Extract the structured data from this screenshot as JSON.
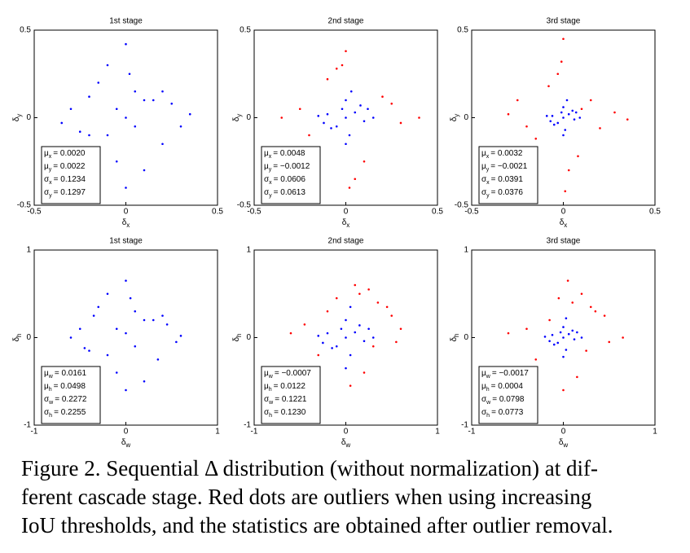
{
  "chart_data": [
    {
      "type": "scatter",
      "title": "1st stage",
      "xlim": [
        -0.5,
        0.5
      ],
      "ylim": [
        -0.5,
        0.5
      ],
      "xticks": [
        -0.5,
        0,
        0.5
      ],
      "yticks": [
        -0.5,
        0,
        0.5
      ],
      "xlabel": {
        "symbol": "δ",
        "sub": "x"
      },
      "ylabel": {
        "symbol": "δ",
        "sub": "y"
      },
      "annotations": [
        {
          "symbol": "μ",
          "sub": "x",
          "text": "= 0.0020"
        },
        {
          "symbol": "μ",
          "sub": "y",
          "text": "= 0.0022"
        },
        {
          "symbol": "σ",
          "sub": "x",
          "text": "= 0.1234"
        },
        {
          "symbol": "σ",
          "sub": "y",
          "text": "= 0.1297"
        }
      ],
      "series": [
        {
          "color": "#0000ff",
          "x": [
            -0.3,
            -0.2,
            -0.15,
            -0.1,
            -0.05,
            0,
            0.05,
            0.1,
            0.15,
            0.2,
            0.3,
            0.35,
            -0.35,
            0,
            0,
            0.1,
            -0.1,
            0.2,
            -0.2,
            0.05,
            -0.05,
            0.25,
            -0.25,
            0.02
          ],
          "y": [
            0.05,
            -0.1,
            0.2,
            0.3,
            -0.25,
            0.42,
            0.15,
            -0.3,
            0.1,
            0.15,
            -0.05,
            0.02,
            -0.03,
            -0.4,
            0,
            0.1,
            -0.1,
            -0.15,
            0.12,
            -0.05,
            0.05,
            0.08,
            -0.08,
            0.25
          ]
        }
      ]
    },
    {
      "type": "scatter",
      "title": "2nd stage",
      "xlim": [
        -0.5,
        0.5
      ],
      "ylim": [
        -0.5,
        0.5
      ],
      "xticks": [
        -0.5,
        0,
        0.5
      ],
      "yticks": [
        -0.5,
        0,
        0.5
      ],
      "xlabel": {
        "symbol": "δ",
        "sub": "x"
      },
      "ylabel": {
        "symbol": "δ",
        "sub": "y"
      },
      "annotations": [
        {
          "symbol": "μ",
          "sub": "x",
          "text": "= 0.0048"
        },
        {
          "symbol": "μ",
          "sub": "y",
          "text": "= −0.0012"
        },
        {
          "symbol": "σ",
          "sub": "x",
          "text": "= 0.0606"
        },
        {
          "symbol": "σ",
          "sub": "y",
          "text": "= 0.0613"
        }
      ],
      "series": [
        {
          "color": "#ff0000",
          "x": [
            -0.35,
            -0.25,
            0.3,
            0.4,
            0,
            0.02,
            -0.02,
            0.2,
            -0.2,
            0.1,
            -0.1,
            0.25,
            0.05,
            -0.05
          ],
          "y": [
            0,
            0.05,
            -0.03,
            0,
            0.38,
            -0.4,
            0.3,
            0.12,
            -0.1,
            -0.25,
            0.22,
            0.08,
            -0.35,
            0.28
          ]
        },
        {
          "color": "#0000ff",
          "x": [
            -0.1,
            -0.05,
            0,
            0.05,
            0.1,
            0.02,
            -0.02,
            0.08,
            -0.08,
            0.15,
            -0.15,
            0,
            0.03,
            -0.12,
            0.12,
            0
          ],
          "y": [
            0.02,
            -0.05,
            0.1,
            0.03,
            -0.02,
            -0.1,
            0.05,
            0.07,
            -0.06,
            0,
            0.01,
            -0.15,
            0.15,
            -0.03,
            0.05,
            0
          ]
        }
      ]
    },
    {
      "type": "scatter",
      "title": "3rd stage",
      "xlim": [
        -0.5,
        0.5
      ],
      "ylim": [
        -0.5,
        0.5
      ],
      "xticks": [
        -0.5,
        0,
        0.5
      ],
      "yticks": [
        -0.5,
        0,
        0.5
      ],
      "xlabel": {
        "symbol": "δ",
        "sub": "x"
      },
      "ylabel": {
        "symbol": "δ",
        "sub": "y"
      },
      "annotations": [
        {
          "symbol": "μ",
          "sub": "x",
          "text": "= 0.0032"
        },
        {
          "symbol": "μ",
          "sub": "y",
          "text": "= −0.0021"
        },
        {
          "symbol": "σ",
          "sub": "x",
          "text": "= 0.0391"
        },
        {
          "symbol": "σ",
          "sub": "y",
          "text": "= 0.0376"
        }
      ],
      "series": [
        {
          "color": "#ff0000",
          "x": [
            -0.3,
            -0.2,
            0.28,
            0.35,
            0,
            0.01,
            -0.01,
            0.15,
            -0.15,
            0.08,
            -0.08,
            0.2,
            0.03,
            -0.03,
            0.1,
            -0.25
          ],
          "y": [
            0.02,
            -0.05,
            0.03,
            -0.01,
            0.45,
            -0.42,
            0.32,
            0.1,
            -0.12,
            -0.22,
            0.18,
            -0.06,
            -0.3,
            0.25,
            0.05,
            0.1
          ]
        },
        {
          "color": "#0000ff",
          "x": [
            -0.06,
            -0.03,
            0,
            0.03,
            0.06,
            0.01,
            -0.01,
            0.05,
            -0.05,
            0.09,
            -0.09,
            0,
            0.02,
            -0.07,
            0.07,
            0
          ],
          "y": [
            0.01,
            -0.03,
            0.06,
            0.02,
            -0.01,
            -0.07,
            0.03,
            0.04,
            -0.04,
            0,
            0.01,
            -0.1,
            0.1,
            -0.02,
            0.03,
            0
          ]
        }
      ]
    },
    {
      "type": "scatter",
      "title": "1st stage",
      "xlim": [
        -1,
        1
      ],
      "ylim": [
        -1,
        1
      ],
      "xticks": [
        -1,
        0,
        1
      ],
      "yticks": [
        -1,
        0,
        1
      ],
      "xlabel": {
        "symbol": "δ",
        "sub": "w"
      },
      "ylabel": {
        "symbol": "δ",
        "sub": "h"
      },
      "annotations": [
        {
          "symbol": "μ",
          "sub": "w",
          "text": "= 0.0161"
        },
        {
          "symbol": "μ",
          "sub": "h",
          "text": "= 0.0498"
        },
        {
          "symbol": "σ",
          "sub": "w",
          "text": "= 0.2272"
        },
        {
          "symbol": "σ",
          "sub": "h",
          "text": "= 0.2255"
        }
      ],
      "series": [
        {
          "color": "#0000ff",
          "x": [
            -0.5,
            -0.4,
            -0.3,
            -0.2,
            -0.1,
            0,
            0.1,
            0.2,
            0.3,
            0.4,
            0.55,
            0.6,
            -0.6,
            0,
            0,
            0.2,
            -0.2,
            0.35,
            -0.35,
            0.1,
            -0.1,
            0.45,
            -0.45,
            0.05
          ],
          "y": [
            0.1,
            -0.15,
            0.35,
            0.5,
            -0.4,
            0.65,
            0.3,
            -0.5,
            0.2,
            0.25,
            -0.05,
            0.02,
            0,
            -0.6,
            0.05,
            0.2,
            -0.2,
            -0.25,
            0.25,
            -0.1,
            0.1,
            0.15,
            -0.12,
            0.45
          ]
        }
      ]
    },
    {
      "type": "scatter",
      "title": "2nd stage",
      "xlim": [
        -1,
        1
      ],
      "ylim": [
        -1,
        1
      ],
      "xticks": [
        -1,
        0,
        1
      ],
      "yticks": [
        -1,
        0,
        1
      ],
      "xlabel": {
        "symbol": "δ",
        "sub": "w"
      },
      "ylabel": {
        "symbol": "δ",
        "sub": "h"
      },
      "annotations": [
        {
          "symbol": "μ",
          "sub": "w",
          "text": "= −0.0007"
        },
        {
          "symbol": "μ",
          "sub": "h",
          "text": "= 0.0122"
        },
        {
          "symbol": "σ",
          "sub": "w",
          "text": "= 0.1221"
        },
        {
          "symbol": "σ",
          "sub": "h",
          "text": "= 0.1230"
        }
      ],
      "series": [
        {
          "color": "#ff0000",
          "x": [
            -0.6,
            -0.45,
            0.5,
            0.6,
            0.1,
            0.05,
            -0.1,
            0.35,
            -0.3,
            0.2,
            0.45,
            0.25,
            0.3,
            -0.2,
            0.15,
            0.55
          ],
          "y": [
            0.05,
            0.15,
            0.25,
            0.1,
            0.6,
            -0.55,
            0.45,
            0.4,
            -0.2,
            -0.4,
            0.35,
            0.55,
            -0.1,
            0.3,
            0.5,
            -0.05
          ]
        },
        {
          "color": "#0000ff",
          "x": [
            -0.2,
            -0.1,
            0,
            0.1,
            0.2,
            0.05,
            -0.05,
            0.15,
            -0.15,
            0.3,
            -0.3,
            0,
            0.05,
            -0.25,
            0.25,
            0
          ],
          "y": [
            0.05,
            -0.1,
            0.2,
            0.06,
            -0.04,
            -0.2,
            0.1,
            0.14,
            -0.12,
            0,
            0.02,
            -0.35,
            0.35,
            -0.06,
            0.1,
            0
          ]
        }
      ]
    },
    {
      "type": "scatter",
      "title": "3rd stage",
      "xlim": [
        -1,
        1
      ],
      "ylim": [
        -1,
        1
      ],
      "xticks": [
        -1,
        0,
        1
      ],
      "yticks": [
        -1,
        0,
        1
      ],
      "xlabel": {
        "symbol": "δ",
        "sub": "w"
      },
      "ylabel": {
        "symbol": "δ",
        "sub": "h"
      },
      "annotations": [
        {
          "symbol": "μ",
          "sub": "w",
          "text": "= −0.0017"
        },
        {
          "symbol": "μ",
          "sub": "h",
          "text": "= 0.0004"
        },
        {
          "symbol": "σ",
          "sub": "w",
          "text": "= 0.0798"
        },
        {
          "symbol": "σ",
          "sub": "h",
          "text": "= 0.0773"
        }
      ],
      "series": [
        {
          "color": "#ff0000",
          "x": [
            -0.6,
            -0.4,
            0.45,
            0.65,
            0.05,
            0,
            -0.05,
            0.3,
            -0.3,
            0.15,
            0.35,
            0.2,
            0.25,
            -0.15,
            0.1,
            0.5
          ],
          "y": [
            0.05,
            0.1,
            0.25,
            0,
            0.65,
            -0.6,
            0.45,
            0.35,
            -0.25,
            -0.45,
            0.3,
            0.5,
            -0.15,
            0.2,
            0.4,
            -0.05
          ]
        },
        {
          "color": "#0000ff",
          "x": [
            -0.12,
            -0.06,
            0,
            0.06,
            0.12,
            0.03,
            -0.03,
            0.1,
            -0.1,
            0.2,
            -0.2,
            0,
            0.03,
            -0.15,
            0.15,
            0
          ],
          "y": [
            0.03,
            -0.06,
            0.12,
            0.04,
            -0.02,
            -0.14,
            0.06,
            0.08,
            -0.08,
            0,
            0.01,
            -0.22,
            0.22,
            -0.04,
            0.06,
            0
          ]
        }
      ]
    }
  ],
  "caption": [
    "Figure 2. Sequential Δ distribution (without normalization) at dif-",
    "ferent cascade stage. Red dots are outliers when using increasing",
    "IoU thresholds, and the statistics are obtained after outlier removal."
  ]
}
